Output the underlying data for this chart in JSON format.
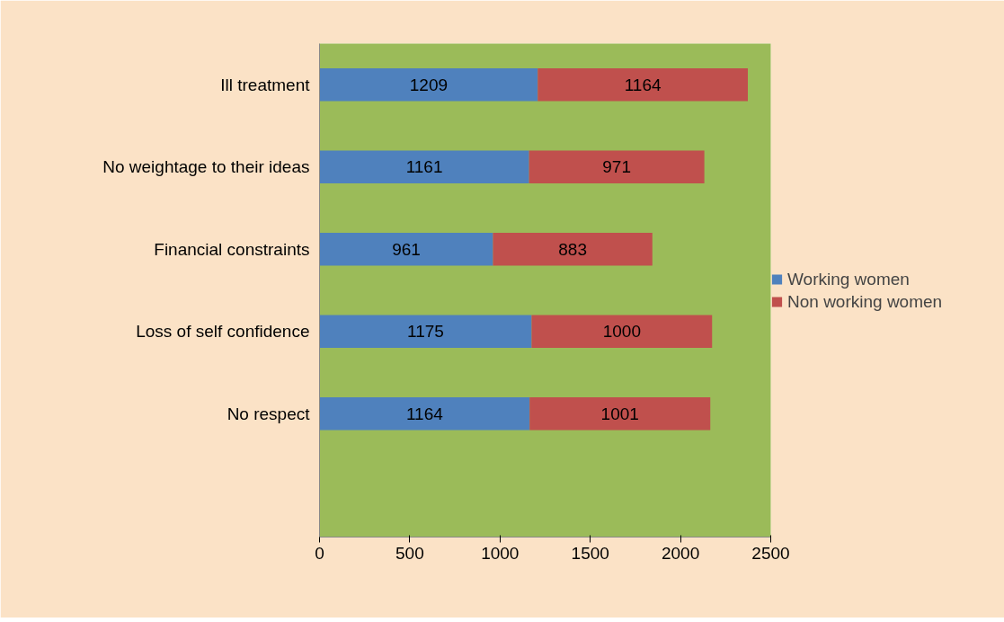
{
  "chart_data": {
    "type": "bar",
    "orientation": "horizontal",
    "stacked": true,
    "categories": [
      "Ill treatment",
      "No weightage to their ideas",
      "Financial constraints",
      "Loss of self confidence",
      "No respect",
      null
    ],
    "series": [
      {
        "name": "Working women",
        "color": "#4f81bd",
        "values": [
          1209,
          1161,
          961,
          1175,
          1164,
          null
        ]
      },
      {
        "name": "Non working women",
        "color": "#c0504d",
        "values": [
          1164,
          971,
          883,
          1000,
          1001,
          null
        ]
      }
    ],
    "xlim": [
      0,
      2500
    ],
    "xticks": [
      0,
      500,
      1000,
      1500,
      2000,
      2500
    ],
    "data_labels": true,
    "grid": false,
    "legend": "right"
  }
}
